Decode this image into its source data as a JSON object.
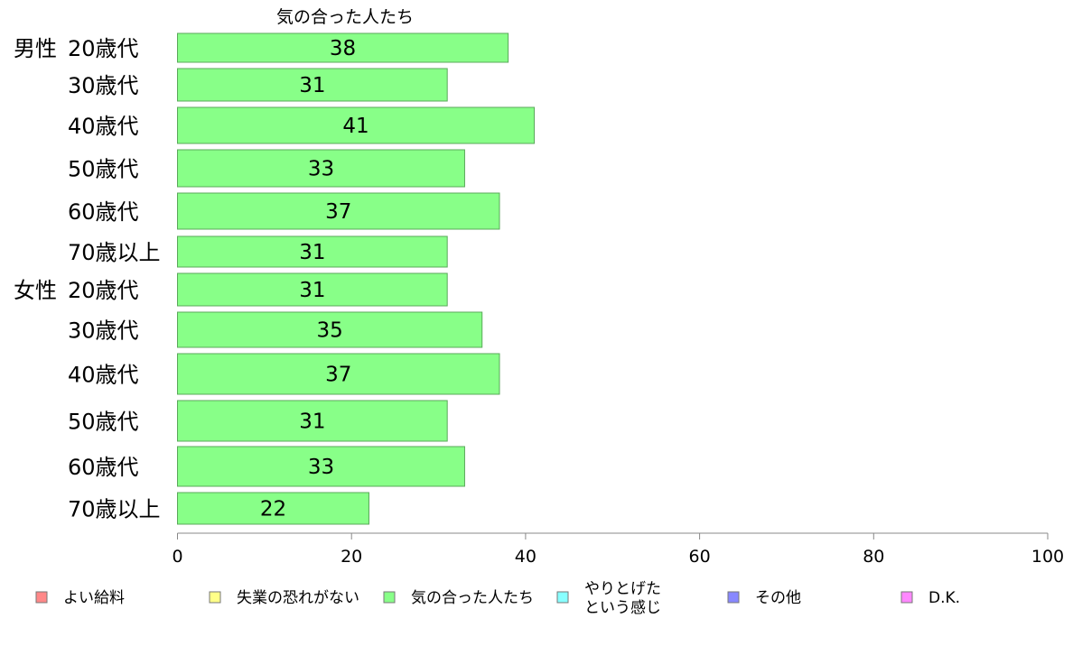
{
  "chart_data": {
    "type": "bar",
    "orientation": "horizontal",
    "title": "気の合った人たち",
    "groups": [
      {
        "name": "男性",
        "categories": [
          "20歳代",
          "30歳代",
          "40歳代",
          "50歳代",
          "60歳代",
          "70歳以上"
        ]
      },
      {
        "name": "女性",
        "categories": [
          "20歳代",
          "30歳代",
          "40歳代",
          "50歳代",
          "60歳代",
          "70歳以上"
        ]
      }
    ],
    "series": [
      {
        "name": "気の合った人たち",
        "color": "#88ff88",
        "values": [
          38,
          31,
          41,
          33,
          37,
          31,
          31,
          35,
          37,
          31,
          33,
          22
        ]
      }
    ],
    "xlim": [
      0,
      100
    ],
    "xticks": [
      "0",
      "20",
      "40",
      "60",
      "80",
      "100"
    ],
    "grid": false,
    "legend_position": "bottom",
    "legend": [
      {
        "label": "よい給料",
        "color": "#ff8888"
      },
      {
        "label": "失業の恐れがない",
        "color": "#ffff88"
      },
      {
        "label": "気の合った人たち",
        "color": "#88ff88"
      },
      {
        "label": "やりとげた\nという感じ",
        "color": "#88ffff"
      },
      {
        "label": "その他",
        "color": "#8888ff"
      },
      {
        "label": "D.K.",
        "color": "#ff88ff"
      }
    ]
  }
}
